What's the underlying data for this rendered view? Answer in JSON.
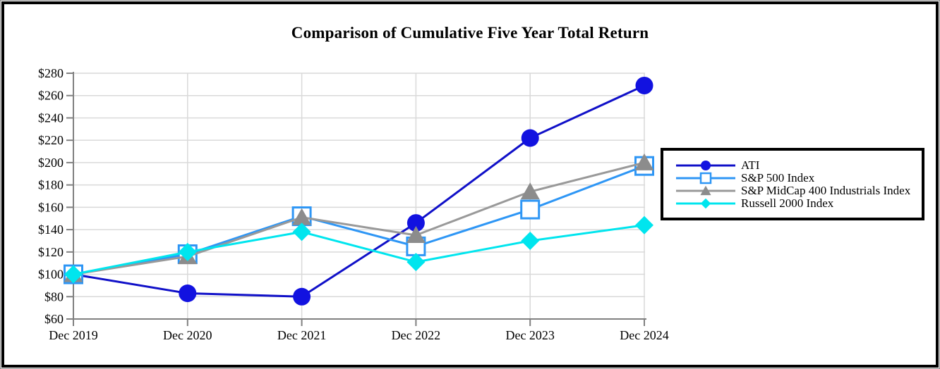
{
  "title": "Comparison of Cumulative Five Year Total Return",
  "colors": {
    "background": "#FFFFFF",
    "outer_border": "#000000",
    "grid": "#D9D9D9",
    "axis": "#808080",
    "legend_border": "#000000"
  },
  "chart_data": {
    "type": "line",
    "title": "Comparison of Cumulative Five Year Total Return",
    "categories": [
      "Dec 2019",
      "Dec 2020",
      "Dec 2021",
      "Dec 2022",
      "Dec 2023",
      "Dec 2024"
    ],
    "series": [
      {
        "name": "ATI",
        "marker": "circle",
        "line_color": "#1010C8",
        "marker_color": "#1212E0",
        "values": [
          100,
          83,
          80,
          146,
          222,
          269
        ]
      },
      {
        "name": "S&P 500 Index",
        "marker": "square-open",
        "line_color": "#2E96F5",
        "marker_color": "#FFFFFF",
        "values": [
          100,
          118,
          152,
          125,
          158,
          197
        ]
      },
      {
        "name": "S&P MidCap 400 Industrials Index",
        "marker": "triangle",
        "line_color": "#999999",
        "marker_color": "#8C8C8C",
        "values": [
          100,
          116,
          151,
          135,
          174,
          200
        ]
      },
      {
        "name": "Russell 2000 Index",
        "marker": "diamond",
        "line_color": "#00E5EE",
        "marker_color": "#00E5EE",
        "values": [
          100,
          120,
          138,
          111,
          130,
          144
        ]
      }
    ],
    "xlabel": "",
    "ylabel": "",
    "y_axis": {
      "min": 60,
      "max": 280,
      "step": 20,
      "prefix": "$",
      "tick_labels": [
        "$60",
        "$80",
        "$100",
        "$120",
        "$140",
        "$160",
        "$180",
        "$200",
        "$220",
        "$240",
        "$260",
        "$280"
      ]
    },
    "grid": true,
    "legend_position": "right",
    "legend_entries": [
      "ATI",
      "S&P 500 Index",
      "S&P MidCap 400 Industrials Index",
      "Russell 2000 Index"
    ]
  }
}
